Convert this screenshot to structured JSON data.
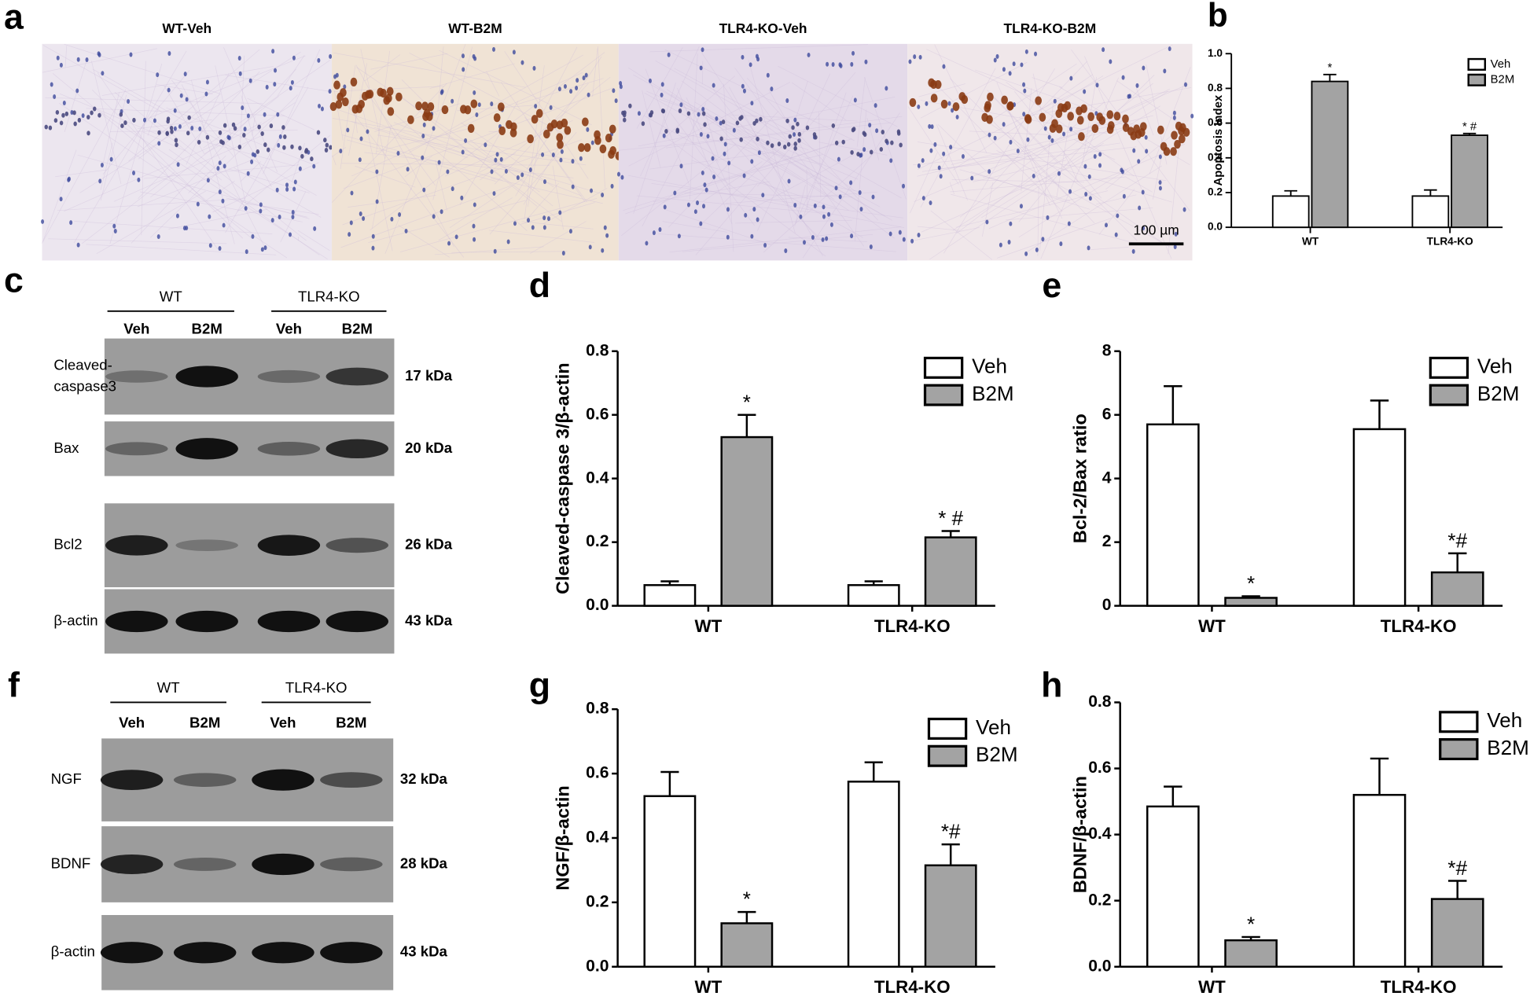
{
  "figure_a": {
    "panel": "a",
    "titles": [
      "WT-Veh",
      "WT-B2M",
      "TLR4-KO-Veh",
      "TLR4-KO-B2M"
    ],
    "scale_bar": "100 µm"
  },
  "blot_c": {
    "panel": "c",
    "groups": [
      "WT",
      "TLR4-KO"
    ],
    "lanes": [
      "Veh",
      "B2M",
      "Veh",
      "B2M"
    ],
    "rows": [
      {
        "label": [
          "Cleaved-",
          "caspase3"
        ],
        "mw": "17 kDa"
      },
      {
        "label": [
          "Bax"
        ],
        "mw": "20 kDa"
      },
      {
        "label": [
          "Bcl2"
        ],
        "mw": "26 kDa"
      },
      {
        "label": [
          "β-actin"
        ],
        "mw": "43 kDa"
      }
    ]
  },
  "blot_f": {
    "panel": "f",
    "groups": [
      "WT",
      "TLR4-KO"
    ],
    "lanes": [
      "Veh",
      "B2M",
      "Veh",
      "B2M"
    ],
    "rows": [
      {
        "label": [
          "NGF"
        ],
        "mw": "32 kDa"
      },
      {
        "label": [
          "BDNF"
        ],
        "mw": "28 kDa"
      },
      {
        "label": [
          "β-actin"
        ],
        "mw": "43 kDa"
      }
    ]
  },
  "chart_data": [
    {
      "type": "bar",
      "panel": "b",
      "ylabel": "Apoptosis Index",
      "categories": [
        "WT",
        "TLR4-KO"
      ],
      "series": [
        {
          "name": "Veh",
          "color": "#ffffff",
          "values": [
            0.18,
            0.18
          ],
          "errors": [
            0.03,
            0.035
          ]
        },
        {
          "name": "B2M",
          "color": "#a3a3a3",
          "values": [
            0.84,
            0.53
          ],
          "errors": [
            0.04,
            0.01
          ],
          "markers": [
            "*",
            "* #"
          ]
        }
      ],
      "ylim": [
        0,
        1
      ],
      "yticks": [
        {
          "value": 0,
          "label": "0.0"
        },
        0.2,
        0.4,
        0.6,
        0.8,
        {
          "value": 1,
          "label": "1.0"
        }
      ],
      "legend": "upper right"
    },
    {
      "type": "bar",
      "panel": "d",
      "ylabel": "Cleaved-caspase 3/β-actin",
      "categories": [
        "WT",
        "TLR4-KO"
      ],
      "series": [
        {
          "name": "Veh",
          "color": "#ffffff",
          "values": [
            0.065,
            0.065
          ],
          "errors": [
            0.012,
            0.012
          ]
        },
        {
          "name": "B2M",
          "color": "#a3a3a3",
          "values": [
            0.53,
            0.215
          ],
          "errors": [
            0.07,
            0.02
          ],
          "markers": [
            "*",
            "* #"
          ]
        }
      ],
      "ylim": [
        0,
        0.8
      ],
      "yticks": [
        {
          "value": 0,
          "label": "0.0"
        },
        0.2,
        0.4,
        0.6,
        0.8
      ],
      "legend": "upper right"
    },
    {
      "type": "bar",
      "panel": "e",
      "ylabel": "Bcl-2/Bax ratio",
      "categories": [
        "WT",
        "TLR4-KO"
      ],
      "series": [
        {
          "name": "Veh",
          "color": "#ffffff",
          "values": [
            5.7,
            5.55
          ],
          "errors": [
            1.2,
            0.9
          ]
        },
        {
          "name": "B2M",
          "color": "#a3a3a3",
          "values": [
            0.25,
            1.05
          ],
          "errors": [
            0.05,
            0.6
          ],
          "markers": [
            "*",
            "*#"
          ]
        }
      ],
      "ylim": [
        0,
        8
      ],
      "yticks": [
        0,
        2,
        4,
        6,
        8
      ],
      "legend": "upper right"
    },
    {
      "type": "bar",
      "panel": "g",
      "ylabel": "NGF/β-actin",
      "categories": [
        "WT",
        "TLR4-KO"
      ],
      "series": [
        {
          "name": "Veh",
          "color": "#ffffff",
          "values": [
            0.53,
            0.575
          ],
          "errors": [
            0.075,
            0.06
          ]
        },
        {
          "name": "B2M",
          "color": "#a3a3a3",
          "values": [
            0.135,
            0.315
          ],
          "errors": [
            0.035,
            0.065
          ],
          "markers": [
            "*",
            "*#"
          ]
        }
      ],
      "ylim": [
        0,
        0.8
      ],
      "yticks": [
        {
          "value": 0,
          "label": "0.0"
        },
        0.2,
        0.4,
        0.6,
        0.8
      ],
      "legend": "upper right"
    },
    {
      "type": "bar",
      "panel": "h",
      "ylabel": "BDNF/β-actin",
      "categories": [
        "WT",
        "TLR4-KO"
      ],
      "series": [
        {
          "name": "Veh",
          "color": "#ffffff",
          "values": [
            0.485,
            0.52
          ],
          "errors": [
            0.06,
            0.11
          ]
        },
        {
          "name": "B2M",
          "color": "#a3a3a3",
          "values": [
            0.08,
            0.205
          ],
          "errors": [
            0.01,
            0.055
          ],
          "markers": [
            "*",
            "*#"
          ]
        }
      ],
      "ylim": [
        0,
        0.8
      ],
      "yticks": [
        {
          "value": 0,
          "label": "0.0"
        },
        0.2,
        0.4,
        0.6,
        0.8
      ],
      "legend": "upper right"
    }
  ]
}
